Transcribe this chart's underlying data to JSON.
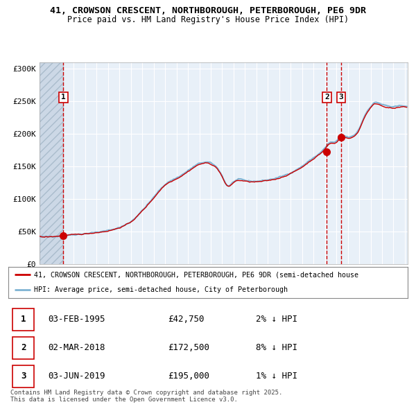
{
  "title_line1": "41, CROWSON CRESCENT, NORTHBOROUGH, PETERBOROUGH, PE6 9DR",
  "title_line2": "Price paid vs. HM Land Registry's House Price Index (HPI)",
  "legend_line1": "41, CROWSON CRESCENT, NORTHBOROUGH, PETERBOROUGH, PE6 9DR (semi-detached house",
  "legend_line2": "HPI: Average price, semi-detached house, City of Peterborough",
  "sales": [
    {
      "label": "1",
      "date": "1995-02-03",
      "price": 42750,
      "pct": "2% ↓ HPI",
      "date_str": "03-FEB-1995",
      "price_str": "£42,750"
    },
    {
      "label": "2",
      "date": "2018-03-02",
      "price": 172500,
      "pct": "8% ↓ HPI",
      "date_str": "02-MAR-2018",
      "price_str": "£172,500"
    },
    {
      "label": "3",
      "date": "2019-06-03",
      "price": 195000,
      "pct": "1% ↓ HPI",
      "date_str": "03-JUN-2019",
      "price_str": "£195,000"
    }
  ],
  "ylim": [
    0,
    310000
  ],
  "yticks": [
    0,
    50000,
    100000,
    150000,
    200000,
    250000,
    300000
  ],
  "ytick_labels": [
    "£0",
    "£50K",
    "£100K",
    "£150K",
    "£200K",
    "£250K",
    "£300K"
  ],
  "plot_bg_color": "#e8f0f8",
  "grid_color": "#ffffff",
  "hpi_color": "#7fb3d3",
  "price_color": "#cc0000",
  "marker_color": "#cc0000",
  "vline_color": "#cc0000",
  "footer_text": "Contains HM Land Registry data © Crown copyright and database right 2025.\nThis data is licensed under the Open Government Licence v3.0.",
  "xstart_year": 1993,
  "xend_year": 2025
}
